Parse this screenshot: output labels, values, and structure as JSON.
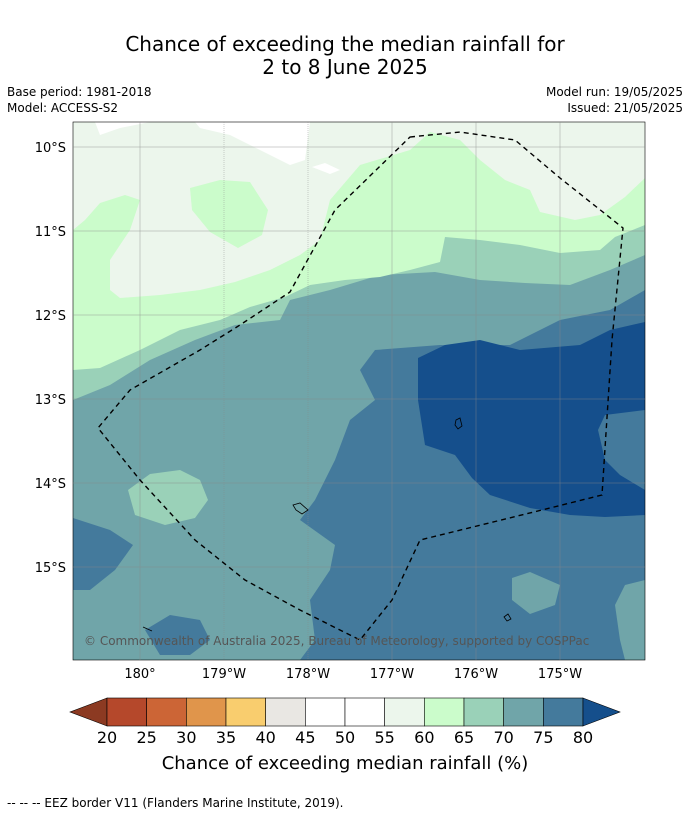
{
  "title_line1": "Chance of exceeding the median rainfall for",
  "title_line2": "2 to 8 June 2025",
  "base_period": "Base period: 1981-2018",
  "model": "Model: ACCESS-S2",
  "model_run": "Model run: 19/05/2025",
  "issued": "Issued: 21/05/2025",
  "lat_labels": [
    "10°S",
    "11°S",
    "12°S",
    "13°S",
    "14°S",
    "15°S"
  ],
  "lon_labels": [
    "180°",
    "179°W",
    "178°W",
    "177°W",
    "176°W",
    "175°W"
  ],
  "copyright": "© Commonwealth of Australia 2025, Bureau of Meteorology, supported by COSPPac",
  "colorbar": {
    "labels": [
      "20",
      "25",
      "30",
      "35",
      "40",
      "45",
      "50",
      "55",
      "60",
      "65",
      "70",
      "75",
      "80"
    ],
    "colors": [
      "#8c3a22",
      "#b5482b",
      "#cc6536",
      "#e0954b",
      "#f9cd6e",
      "#e9e7e3",
      "#ffffff",
      "#ffffff",
      "#ecf6ec",
      "#cbfccb",
      "#9ad1b8",
      "#70a5a9",
      "#447a9c",
      "#154f8c"
    ],
    "title": "Chance of exceeding median rainfall (%)"
  },
  "footnote": "--  --  -- EEZ border V11 (Flanders Marine Institute, 2019)."
}
